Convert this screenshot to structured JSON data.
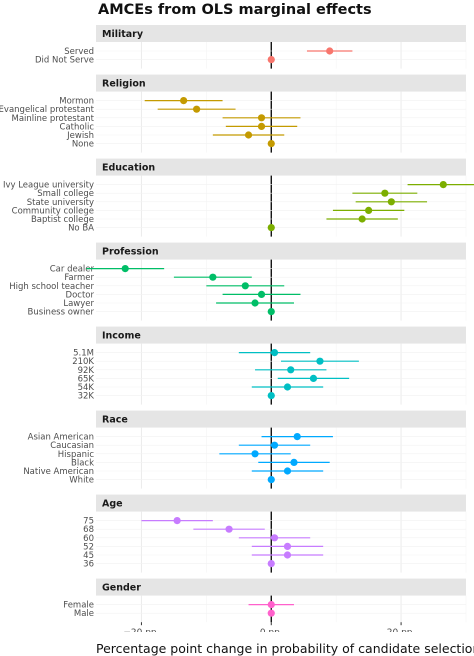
{
  "chart_data": {
    "type": "scatter",
    "title": "AMCEs from OLS marginal effects",
    "xlabel": "Percentage point change in probability of candidate selection",
    "ylabel": "",
    "xlim": [
      -27,
      30
    ],
    "x_ticks": [
      -20,
      0,
      20
    ],
    "x_tick_labels": [
      "−20 pp.",
      "0 pp.",
      "20 pp."
    ],
    "grid": true,
    "legend": "none",
    "reference_line_x": 0,
    "panels": [
      {
        "name": "Military",
        "color": "#F8766D",
        "levels": [
          {
            "label": "Served",
            "estimate": 9,
            "ci": [
              5.5,
              12.5
            ]
          },
          {
            "label": "Did Not Serve",
            "estimate": 0,
            "ci": [
              0,
              0
            ]
          }
        ]
      },
      {
        "name": "Religion",
        "color": "#C49A00",
        "levels": [
          {
            "label": "Mormon",
            "estimate": -13.5,
            "ci": [
              -19.5,
              -7.5
            ]
          },
          {
            "label": "Evangelical protestant",
            "estimate": -11.5,
            "ci": [
              -17.5,
              -5.5
            ]
          },
          {
            "label": "Mainline protestant",
            "estimate": -1.5,
            "ci": [
              -7.5,
              4.5
            ]
          },
          {
            "label": "Catholic",
            "estimate": -1.5,
            "ci": [
              -7,
              4
            ]
          },
          {
            "label": "Jewish",
            "estimate": -3.5,
            "ci": [
              -9,
              2
            ]
          },
          {
            "label": "None",
            "estimate": 0,
            "ci": [
              0,
              0
            ]
          }
        ]
      },
      {
        "name": "Education",
        "color": "#7CAE00",
        "levels": [
          {
            "label": "Ivy League university",
            "estimate": 26.5,
            "ci": [
              21,
              32
            ]
          },
          {
            "label": "Small college",
            "estimate": 17.5,
            "ci": [
              12.5,
              22.5
            ]
          },
          {
            "label": "State university",
            "estimate": 18.5,
            "ci": [
              13,
              24
            ]
          },
          {
            "label": "Community college",
            "estimate": 15,
            "ci": [
              9.5,
              20.5
            ]
          },
          {
            "label": "Baptist college",
            "estimate": 14,
            "ci": [
              8.5,
              19.5
            ]
          },
          {
            "label": "No BA",
            "estimate": 0,
            "ci": [
              0,
              0
            ]
          }
        ]
      },
      {
        "name": "Profession",
        "color": "#00BE67",
        "levels": [
          {
            "label": "Car dealer",
            "estimate": -22.5,
            "ci": [
              -28.5,
              -16.5
            ]
          },
          {
            "label": "Farmer",
            "estimate": -9,
            "ci": [
              -15,
              -3
            ]
          },
          {
            "label": "High school teacher",
            "estimate": -4,
            "ci": [
              -10,
              2
            ]
          },
          {
            "label": "Doctor",
            "estimate": -1.5,
            "ci": [
              -7.5,
              4.5
            ]
          },
          {
            "label": "Lawyer",
            "estimate": -2.5,
            "ci": [
              -8.5,
              3.5
            ]
          },
          {
            "label": "Business owner",
            "estimate": 0,
            "ci": [
              0,
              0
            ]
          }
        ]
      },
      {
        "name": "Income",
        "color": "#00BFC4",
        "levels": [
          {
            "label": "5.1M",
            "estimate": 0.5,
            "ci": [
              -5,
              6
            ]
          },
          {
            "label": "210K",
            "estimate": 7.5,
            "ci": [
              1.5,
              13.5
            ]
          },
          {
            "label": "92K",
            "estimate": 3,
            "ci": [
              -2.5,
              8.5
            ]
          },
          {
            "label": "65K",
            "estimate": 6.5,
            "ci": [
              1,
              12
            ]
          },
          {
            "label": "54K",
            "estimate": 2.5,
            "ci": [
              -3,
              8
            ]
          },
          {
            "label": "32K",
            "estimate": 0,
            "ci": [
              0,
              0
            ]
          }
        ]
      },
      {
        "name": "Race",
        "color": "#00A9FF",
        "levels": [
          {
            "label": "Asian American",
            "estimate": 4,
            "ci": [
              -1.5,
              9.5
            ]
          },
          {
            "label": "Caucasian",
            "estimate": 0.5,
            "ci": [
              -5,
              6
            ]
          },
          {
            "label": "Hispanic",
            "estimate": -2.5,
            "ci": [
              -8,
              3
            ]
          },
          {
            "label": "Black",
            "estimate": 3.5,
            "ci": [
              -2,
              9
            ]
          },
          {
            "label": "Native American",
            "estimate": 2.5,
            "ci": [
              -3,
              8
            ]
          },
          {
            "label": "White",
            "estimate": 0,
            "ci": [
              0,
              0
            ]
          }
        ]
      },
      {
        "name": "Age",
        "color": "#C77CFF",
        "levels": [
          {
            "label": "75",
            "estimate": -14.5,
            "ci": [
              -20,
              -9
            ]
          },
          {
            "label": "68",
            "estimate": -6.5,
            "ci": [
              -12,
              -1
            ]
          },
          {
            "label": "60",
            "estimate": 0.5,
            "ci": [
              -5,
              6
            ]
          },
          {
            "label": "52",
            "estimate": 2.5,
            "ci": [
              -3,
              8
            ]
          },
          {
            "label": "45",
            "estimate": 2.5,
            "ci": [
              -3,
              8
            ]
          },
          {
            "label": "36",
            "estimate": 0,
            "ci": [
              0,
              0
            ]
          }
        ]
      },
      {
        "name": "Gender",
        "color": "#FF61CC",
        "levels": [
          {
            "label": "Female",
            "estimate": 0,
            "ci": [
              -3.5,
              3.5
            ]
          },
          {
            "label": "Male",
            "estimate": 0,
            "ci": [
              0,
              0
            ]
          }
        ]
      }
    ]
  }
}
